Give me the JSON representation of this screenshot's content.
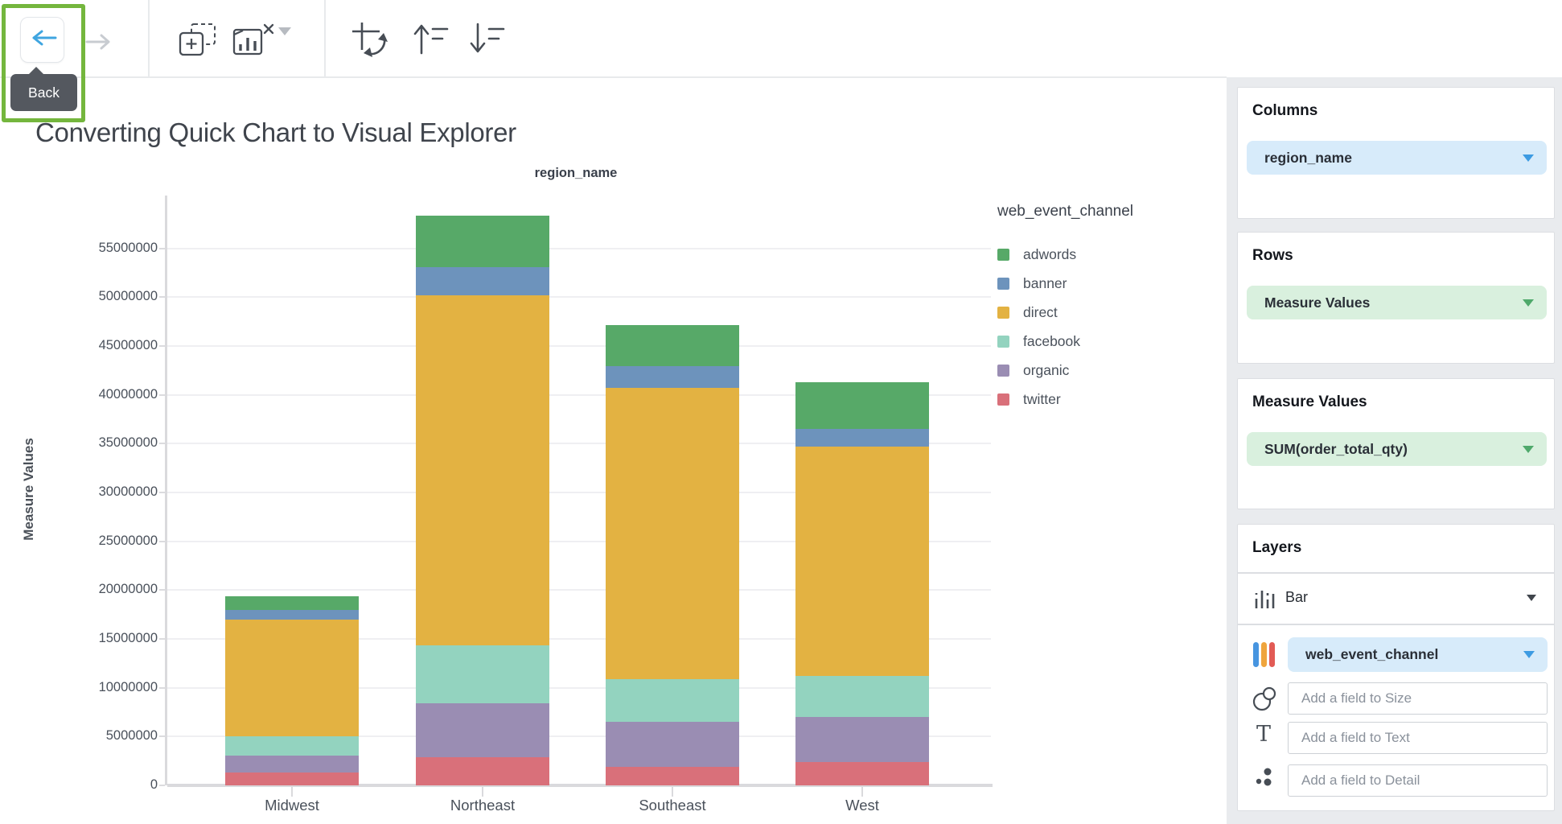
{
  "page": {
    "title": "Converting Quick Chart to Visual Explorer"
  },
  "toolbar": {
    "back_tooltip": "Back",
    "icons": [
      "back",
      "forward",
      "add-element",
      "remove-chart",
      "chart-type-caret",
      "swap-axes",
      "sort-ascending",
      "sort-descending"
    ]
  },
  "chart_data": {
    "type": "bar",
    "stacked": true,
    "title": "region_name",
    "xlabel": "region_name",
    "ylabel": "Measure Values",
    "legend_title": "web_event_channel",
    "legend_position": "right",
    "grid": true,
    "categories": [
      "Midwest",
      "Northeast",
      "Southeast",
      "West"
    ],
    "series": [
      {
        "name": "adwords",
        "color": "#57A968",
        "values": [
          1450000,
          5200000,
          4200000,
          4800000
        ]
      },
      {
        "name": "banner",
        "color": "#6D93BC",
        "values": [
          950000,
          2900000,
          2200000,
          1800000
        ]
      },
      {
        "name": "direct",
        "color": "#E3B242",
        "values": [
          12000000,
          35900000,
          29800000,
          23500000
        ]
      },
      {
        "name": "facebook",
        "color": "#93D3BF",
        "values": [
          1950000,
          5900000,
          4400000,
          4200000
        ]
      },
      {
        "name": "organic",
        "color": "#9A8DB3",
        "values": [
          1750000,
          5550000,
          4600000,
          4600000
        ]
      },
      {
        "name": "twitter",
        "color": "#D9707A",
        "values": [
          1300000,
          2850000,
          1900000,
          2400000
        ]
      }
    ],
    "stack_order_bottom_to_top": [
      "twitter",
      "organic",
      "facebook",
      "direct",
      "banner",
      "adwords"
    ],
    "totals": [
      19400000,
      58300000,
      47100000,
      41300000
    ],
    "y_ticks": [
      0,
      5000000,
      10000000,
      15000000,
      20000000,
      25000000,
      30000000,
      35000000,
      40000000,
      45000000,
      50000000,
      55000000
    ],
    "ylim": [
      0,
      60400000
    ]
  },
  "panel": {
    "columns": {
      "label": "Columns",
      "field": "region_name"
    },
    "rows": {
      "label": "Rows",
      "field": "Measure Values"
    },
    "measure_values": {
      "label": "Measure Values",
      "field": "SUM(order_total_qty)"
    },
    "layers": {
      "label": "Layers",
      "layer_type": "Bar",
      "color_field": "web_event_channel",
      "size_placeholder": "Add a field to Size",
      "text_placeholder": "Add a field to Text",
      "detail_placeholder": "Add a field to Detail",
      "icons": [
        "bar-chart",
        "color-swatches",
        "size",
        "text",
        "detail"
      ]
    }
  },
  "colors": {
    "accent_blue": "#3D9BE2",
    "accent_green": "#4FA96B",
    "pill_blue_bg": "#D7EBFA",
    "pill_green_bg": "#D9F0DE",
    "panel_bg": "#E9EBEE",
    "highlight_green": "#74B63D",
    "tooltip_bg": "#54585F"
  }
}
